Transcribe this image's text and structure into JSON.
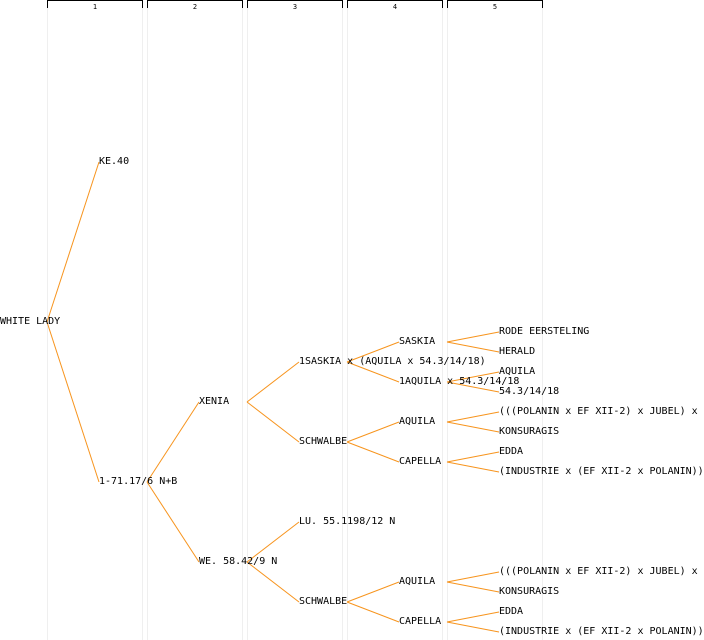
{
  "generations": [
    "1",
    "2",
    "3",
    "4",
    "5"
  ],
  "line_color": "#f7941d",
  "nodes": [
    {
      "id": "n0",
      "label": "WHITE LADY"
    },
    {
      "id": "n1",
      "label": "KE.40"
    },
    {
      "id": "n2",
      "label": "1-71.17/6 N+B"
    },
    {
      "id": "n3",
      "label": "XENIA"
    },
    {
      "id": "n4",
      "label": "WE. 58.42/9 N"
    },
    {
      "id": "n5",
      "label": "1SASKIA x (AQUILA x 54.3/14/18)"
    },
    {
      "id": "n6",
      "label": "SCHWALBE"
    },
    {
      "id": "n7",
      "label": "LU. 55.1198/12 N"
    },
    {
      "id": "n8",
      "label": "SCHWALBE"
    },
    {
      "id": "n9",
      "label": "SASKIA"
    },
    {
      "id": "n10",
      "label": "1AQUILA x 54.3/14/18"
    },
    {
      "id": "n11",
      "label": "AQUILA"
    },
    {
      "id": "n12",
      "label": "CAPELLA"
    },
    {
      "id": "n13",
      "label": "AQUILA"
    },
    {
      "id": "n14",
      "label": "CAPELLA"
    },
    {
      "id": "n15",
      "label": "RODE EERSTELING"
    },
    {
      "id": "n16",
      "label": "HERALD"
    },
    {
      "id": "n17",
      "label": "AQUILA"
    },
    {
      "id": "n18",
      "label": "54.3/14/18"
    },
    {
      "id": "n19",
      "label": "(((POLANIN x EF XII-2) x JUBEL) x"
    },
    {
      "id": "n20",
      "label": "KONSURAGIS"
    },
    {
      "id": "n21",
      "label": "EDDA"
    },
    {
      "id": "n22",
      "label": "(INDUSTRIE x (EF XII-2 x POLANIN))"
    },
    {
      "id": "n23",
      "label": "(((POLANIN x EF XII-2) x JUBEL) x"
    },
    {
      "id": "n24",
      "label": "KONSURAGIS"
    },
    {
      "id": "n25",
      "label": "EDDA"
    },
    {
      "id": "n26",
      "label": "(INDUSTRIE x (EF XII-2 x POLANIN))"
    }
  ],
  "edges": [
    [
      "n0",
      "n1"
    ],
    [
      "n0",
      "n2"
    ],
    [
      "n2",
      "n3"
    ],
    [
      "n2",
      "n4"
    ],
    [
      "n3",
      "n5"
    ],
    [
      "n3",
      "n6"
    ],
    [
      "n4",
      "n7"
    ],
    [
      "n4",
      "n8"
    ],
    [
      "n5",
      "n9"
    ],
    [
      "n5",
      "n10"
    ],
    [
      "n6",
      "n11"
    ],
    [
      "n6",
      "n12"
    ],
    [
      "n8",
      "n13"
    ],
    [
      "n8",
      "n14"
    ],
    [
      "n9",
      "n15"
    ],
    [
      "n9",
      "n16"
    ],
    [
      "n10",
      "n17"
    ],
    [
      "n10",
      "n18"
    ],
    [
      "n11",
      "n19"
    ],
    [
      "n11",
      "n20"
    ],
    [
      "n12",
      "n21"
    ],
    [
      "n12",
      "n22"
    ],
    [
      "n13",
      "n23"
    ],
    [
      "n13",
      "n24"
    ],
    [
      "n14",
      "n25"
    ],
    [
      "n14",
      "n26"
    ]
  ]
}
